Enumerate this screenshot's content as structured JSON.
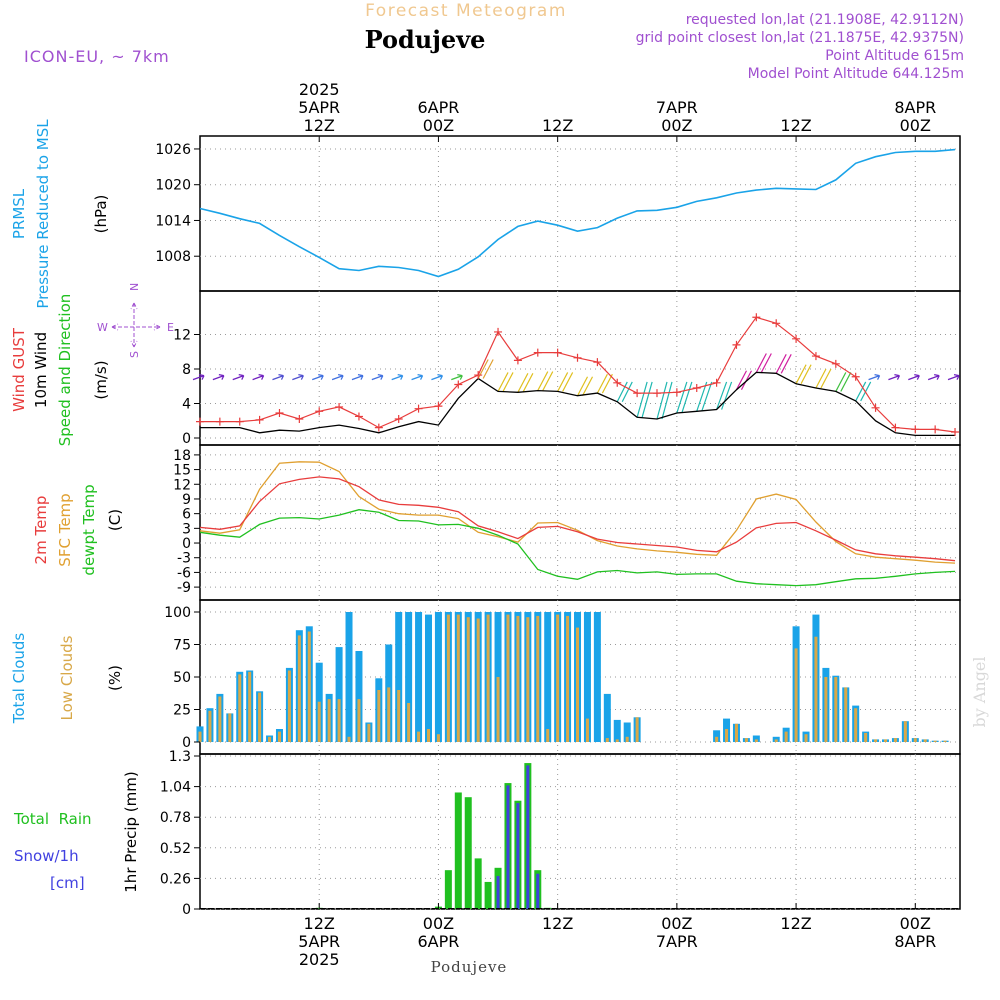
{
  "header": {
    "top_title": "Forecast Meteogram",
    "location": "Podujeve",
    "model": "ICON-EU, ~ 7km",
    "requested": "requested lon,lat (21.1908E, 42.9112N)",
    "grid_point": "grid point closest lon,lat (21.1875E, 42.9375N)",
    "point_altitude": "Point Altitude 615m",
    "model_altitude": "Model Point Altitude 644.125m",
    "footer": "Podujeve",
    "credit": "by Angel"
  },
  "time_axis": {
    "top": [
      {
        "hour": 12,
        "lines": [
          "2025",
          "5APR",
          "12Z"
        ]
      },
      {
        "hour": 24,
        "lines": [
          "6APR",
          "00Z"
        ]
      },
      {
        "hour": 36,
        "lines": [
          "12Z"
        ]
      },
      {
        "hour": 48,
        "lines": [
          "7APR",
          "00Z"
        ]
      },
      {
        "hour": 60,
        "lines": [
          "12Z"
        ]
      },
      {
        "hour": 72,
        "lines": [
          "8APR",
          "00Z"
        ]
      }
    ],
    "bottom": [
      {
        "hour": 12,
        "lines": [
          "12Z",
          "5APR",
          "2025"
        ]
      },
      {
        "hour": 24,
        "lines": [
          "00Z",
          "6APR"
        ]
      },
      {
        "hour": 36,
        "lines": [
          "12Z"
        ]
      },
      {
        "hour": 48,
        "lines": [
          "00Z",
          "7APR"
        ]
      },
      {
        "hour": 60,
        "lines": [
          "12Z"
        ]
      },
      {
        "hour": 72,
        "lines": [
          "00Z",
          "8APR"
        ]
      }
    ]
  },
  "colors": {
    "pressure": "#1aa3e8",
    "gust": "#e83c3c",
    "wind": "#000000",
    "t2m": "#e83c3c",
    "sfc": "#e0a030",
    "dew": "#20c020",
    "total_clouds": "#1aa3e8",
    "low_clouds": "#d8a848",
    "rain": "#20c020",
    "snow": "#4040e0",
    "header_purple": "#a050d0"
  },
  "panel_labels": {
    "pressure": {
      "lines": [
        "PRMSL",
        "Pressure Reduced to MSL"
      ],
      "unit": "(hPa)"
    },
    "wind": {
      "lines": [
        "Wind GUST",
        "10m Wind",
        "Speed and Direction"
      ],
      "unit": "(m/s)"
    },
    "compass": {
      "n": "N",
      "s": "S",
      "w": "W",
      "e": "E"
    },
    "temp": {
      "lines": [
        "2m Temp",
        "SFC Temp",
        "dewpt Temp"
      ],
      "unit": "(C)"
    },
    "clouds": {
      "lines": [
        "Total Clouds",
        "Low Clouds"
      ],
      "unit": "(%)"
    },
    "precip": {
      "lines": [
        "Total  Rain",
        "Snow/1h",
        "[cm]"
      ],
      "unit": "1hr Precip (mm)"
    }
  },
  "chart_data": [
    {
      "type": "line",
      "name": "pressure",
      "ylim": [
        1003,
        1027
      ],
      "yticks": [
        1008,
        1014,
        1020,
        1026
      ],
      "x": [
        0,
        2,
        4,
        6,
        8,
        10,
        12,
        14,
        16,
        18,
        20,
        22,
        24,
        26,
        28,
        30,
        32,
        34,
        36,
        38,
        40,
        42,
        44,
        46,
        48,
        50,
        52,
        54,
        56,
        58,
        60,
        62,
        64,
        66,
        68,
        70,
        72,
        74,
        76
      ],
      "values": [
        1016,
        1015.2,
        1014.3,
        1013.5,
        1011.5,
        1009.6,
        1007.8,
        1005.9,
        1005.6,
        1006.3,
        1006.1,
        1005.6,
        1004.6,
        1005.8,
        1007.9,
        1010.8,
        1013,
        1013.9,
        1013.2,
        1012.2,
        1012.8,
        1014.4,
        1015.6,
        1015.7,
        1016.2,
        1017.2,
        1017.8,
        1018.6,
        1019.1,
        1019.4,
        1019.3,
        1019.2,
        1020.8,
        1023.6,
        1024.7,
        1025.4,
        1025.6,
        1025.6,
        1025.9
      ]
    },
    {
      "type": "line",
      "name": "wind",
      "ylim": [
        0,
        16
      ],
      "yticks": [
        0,
        4,
        8,
        12
      ],
      "x": [
        0,
        2,
        4,
        6,
        8,
        10,
        12,
        14,
        16,
        18,
        20,
        22,
        24,
        26,
        28,
        30,
        32,
        34,
        36,
        38,
        40,
        42,
        44,
        46,
        48,
        50,
        52,
        54,
        56,
        58,
        60,
        62,
        64,
        66,
        68,
        70,
        72,
        74,
        76
      ],
      "gust": [
        1.9,
        1.9,
        1.9,
        2.1,
        2.9,
        2.2,
        3.1,
        3.6,
        2.5,
        1.2,
        2.2,
        3.4,
        3.7,
        6.2,
        7.3,
        12.3,
        9,
        9.9,
        9.9,
        9.3,
        8.8,
        6.4,
        5.2,
        5.2,
        5.3,
        5.8,
        6.4,
        10.8,
        14,
        13.3,
        11.5,
        9.5,
        8.6,
        7.1,
        3.5,
        1.2,
        1,
        1,
        0.7
      ],
      "speed": [
        1.2,
        1.2,
        1.2,
        0.6,
        0.9,
        0.8,
        1.2,
        1.5,
        1.1,
        0.6,
        1.3,
        1.9,
        1.5,
        4.6,
        6.9,
        5.4,
        5.3,
        5.5,
        5.4,
        4.9,
        5.2,
        4.2,
        2.4,
        2.2,
        2.9,
        3.1,
        3.3,
        5.6,
        7.6,
        7.5,
        6.3,
        5.8,
        5.4,
        4.3,
        2,
        0.6,
        0.3,
        0.3,
        0.3
      ],
      "barbs_dir_color": [
        "#7020c0",
        "#7020c0",
        "#7020c0",
        "#7020c0",
        "#5050d0",
        "#5050d0",
        "#4070e0",
        "#4070e0",
        "#4070e0",
        "#4070e0",
        "#3090e8",
        "#3090e8",
        "#3090e8",
        "#40c040",
        "#e0a030",
        "#e0c020",
        "#e0c020",
        "#e0c020",
        "#e0c020",
        "#e0c020",
        "#e0c020",
        "#20b8b0",
        "#20b8b0",
        "#20b8b0",
        "#20b8b0",
        "#20b8b0",
        "#20b8b0",
        "#d020a0",
        "#d020a0",
        "#d020a0",
        "#e0c020",
        "#e0c020",
        "#40c040",
        "#20b8b0",
        "#4070e0",
        "#7020c0",
        "#7020c0",
        "#7020c0",
        "#7020c0"
      ]
    },
    {
      "type": "line",
      "name": "temperature",
      "ylim": [
        -10,
        19
      ],
      "yticks": [
        -9,
        -6,
        -3,
        0,
        3,
        6,
        9,
        12,
        15,
        18
      ],
      "x": [
        0,
        2,
        4,
        6,
        8,
        10,
        12,
        14,
        16,
        18,
        20,
        22,
        24,
        26,
        28,
        30,
        32,
        34,
        36,
        38,
        40,
        42,
        44,
        46,
        48,
        50,
        52,
        54,
        56,
        58,
        60,
        62,
        64,
        66,
        68,
        70,
        72,
        74,
        76
      ],
      "t2m": [
        3.2,
        2.8,
        3.5,
        8.5,
        12.1,
        13,
        13.5,
        13.1,
        11.5,
        8.8,
        7.9,
        7.7,
        7.3,
        6.4,
        3.5,
        2.3,
        0.9,
        3.2,
        3.4,
        2.3,
        0.8,
        0.1,
        -0.2,
        -0.5,
        -0.8,
        -1.5,
        -1.8,
        0.2,
        3.1,
        4,
        4.2,
        2.5,
        0.6,
        -1.4,
        -2.2,
        -2.6,
        -2.9,
        -3.2,
        -3.6
      ],
      "sfc": [
        2.5,
        2,
        2.7,
        11,
        16.3,
        16.6,
        16.5,
        14.6,
        9.5,
        6.9,
        6,
        5.7,
        5.7,
        5,
        2.2,
        1.3,
        0.2,
        4.1,
        4.2,
        2.6,
        0.5,
        -0.6,
        -1.2,
        -1.6,
        -1.9,
        -2.3,
        -2.5,
        2.6,
        9,
        10,
        8.9,
        4.3,
        0.3,
        -2.2,
        -2.9,
        -3.2,
        -3.5,
        -3.9,
        -4.1
      ],
      "dew": [
        2.2,
        1.6,
        1.2,
        3.8,
        5.1,
        5.2,
        4.9,
        5.7,
        6.8,
        6.3,
        4.6,
        4.5,
        3.7,
        3.8,
        3,
        1.6,
        -0.2,
        -5.4,
        -6.8,
        -7.4,
        -5.9,
        -5.6,
        -6.1,
        -5.9,
        -6.4,
        -6.3,
        -6.3,
        -7.8,
        -8.3,
        -8.5,
        -8.7,
        -8.5,
        -7.9,
        -7.3,
        -7.2,
        -6.8,
        -6.3,
        -6,
        -5.8
      ]
    },
    {
      "type": "bar",
      "name": "clouds",
      "ylim": [
        0,
        100
      ],
      "yticks": [
        0,
        25,
        50,
        75,
        100
      ],
      "x": [
        0,
        1,
        2,
        3,
        4,
        5,
        6,
        7,
        8,
        9,
        10,
        11,
        12,
        13,
        14,
        15,
        16,
        17,
        18,
        19,
        20,
        21,
        22,
        23,
        24,
        25,
        26,
        27,
        28,
        29,
        30,
        31,
        32,
        33,
        34,
        35,
        36,
        37,
        38,
        39,
        40,
        41,
        42,
        43,
        44,
        45,
        46,
        47,
        48,
        49,
        50,
        51,
        52,
        53,
        54,
        55,
        56,
        57,
        58,
        59,
        60,
        61,
        62,
        63,
        64,
        65,
        66,
        67,
        68,
        69,
        70,
        71,
        72,
        73,
        74,
        75,
        76
      ],
      "total": [
        12,
        26,
        37,
        22,
        54,
        55,
        39,
        5,
        10,
        57,
        86,
        89,
        61,
        37,
        73,
        100,
        70,
        15,
        49,
        75,
        100,
        100,
        100,
        98,
        100,
        100,
        100,
        100,
        100,
        100,
        100,
        100,
        100,
        100,
        100,
        100,
        100,
        100,
        100,
        100,
        100,
        37,
        17,
        15,
        19,
        0,
        0,
        0,
        0,
        0,
        0,
        0,
        9,
        18,
        14,
        3,
        5,
        0,
        4,
        11,
        89,
        8,
        98,
        57,
        51,
        42,
        28,
        8,
        2,
        2,
        3,
        16,
        3,
        2,
        1,
        1,
        0
      ],
      "low": [
        8,
        24,
        35,
        22,
        52,
        54,
        38,
        4,
        8,
        55,
        82,
        85,
        31,
        33,
        33,
        4,
        33,
        14,
        40,
        42,
        40,
        30,
        8,
        10,
        6,
        98,
        98,
        96,
        95,
        98,
        50,
        98,
        97,
        96,
        97,
        10,
        98,
        97,
        88,
        18,
        0,
        3,
        2,
        4,
        19,
        0,
        0,
        0,
        0,
        0,
        0,
        0,
        4,
        10,
        14,
        3,
        2,
        0,
        2,
        8,
        72,
        6,
        81,
        50,
        50,
        42,
        26,
        7,
        2,
        2,
        3,
        16,
        3,
        2,
        1,
        1,
        0
      ]
    },
    {
      "type": "bar",
      "name": "precipitation",
      "ylim": [
        0,
        1.3
      ],
      "yticks": [
        0,
        0.26,
        0.52,
        0.78,
        1.04,
        1.3
      ],
      "x": [
        0,
        1,
        2,
        3,
        4,
        5,
        6,
        7,
        8,
        9,
        10,
        11,
        12,
        13,
        14,
        15,
        16,
        17,
        18,
        19,
        20,
        21,
        22,
        23,
        24,
        25,
        26,
        27,
        28,
        29,
        30,
        31,
        32,
        33,
        34,
        35,
        36,
        37,
        38,
        39,
        40,
        41,
        42,
        43,
        44,
        45,
        46,
        47,
        48,
        49,
        50,
        51,
        52,
        53,
        54,
        55,
        56,
        57,
        58,
        59,
        60,
        61,
        62,
        63,
        64,
        65,
        66,
        67,
        68,
        69,
        70,
        71,
        72,
        73,
        74,
        75,
        76
      ],
      "rain": [
        0,
        0,
        0,
        0,
        0,
        0,
        0,
        0,
        0,
        0,
        0,
        0,
        0.01,
        0,
        0,
        0,
        0,
        0,
        0,
        0,
        0,
        0,
        0,
        0,
        0.02,
        0.33,
        0.99,
        0.95,
        0.43,
        0.23,
        0.35,
        1.07,
        0.92,
        1.24,
        0.33,
        0.01,
        0,
        0,
        0,
        0,
        0,
        0,
        0,
        0,
        0,
        0,
        0,
        0,
        0,
        0,
        0,
        0,
        0,
        0,
        0,
        0,
        0,
        0,
        0,
        0,
        0,
        0,
        0,
        0,
        0,
        0,
        0,
        0,
        0,
        0,
        0,
        0,
        0,
        0,
        0,
        0,
        0
      ],
      "snow": [
        0,
        0,
        0,
        0,
        0,
        0,
        0,
        0,
        0,
        0,
        0,
        0,
        0,
        0,
        0,
        0,
        0,
        0,
        0,
        0,
        0,
        0,
        0,
        0,
        0,
        0,
        0,
        0,
        0,
        0,
        0.28,
        1.05,
        0.9,
        1.22,
        0.3,
        0,
        0,
        0,
        0,
        0,
        0,
        0,
        0,
        0,
        0,
        0,
        0,
        0,
        0,
        0,
        0,
        0,
        0,
        0,
        0,
        0,
        0,
        0,
        0,
        0,
        0,
        0,
        0,
        0,
        0,
        0,
        0,
        0,
        0,
        0,
        0,
        0,
        0,
        0,
        0,
        0,
        0
      ]
    }
  ]
}
